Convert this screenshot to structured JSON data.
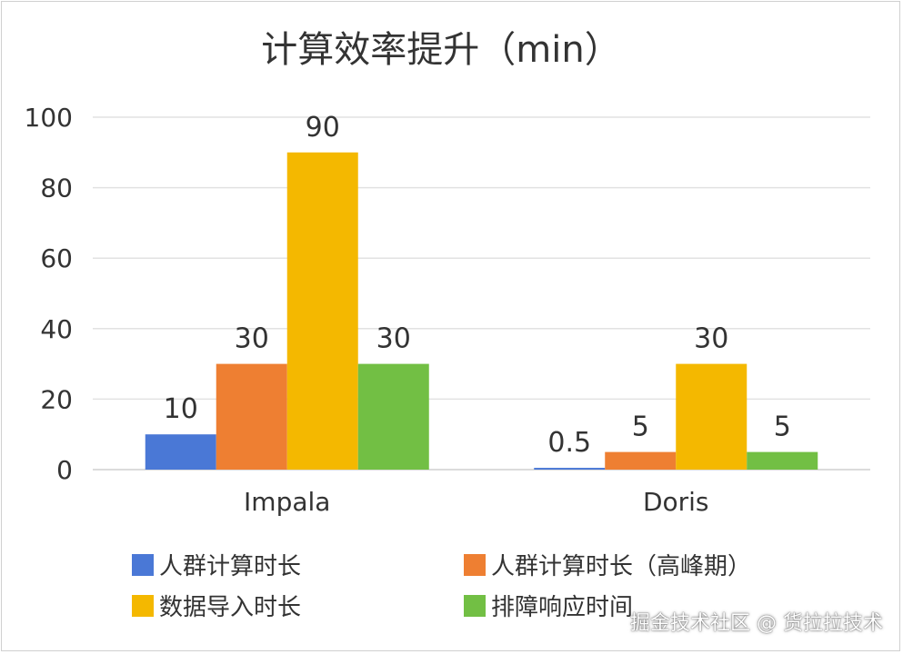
{
  "chart_data": {
    "type": "bar",
    "title": "计算效率提升（min）",
    "categories": [
      "Impala",
      "Doris"
    ],
    "series": [
      {
        "name": "人群计算时长",
        "values": [
          10,
          0.5
        ],
        "labels": [
          "10",
          "0.5"
        ],
        "color": "#4a78d6"
      },
      {
        "name": "人群计算时长（高峰期）",
        "values": [
          30,
          5
        ],
        "labels": [
          "30",
          "5"
        ],
        "color": "#ee7f32"
      },
      {
        "name": "数据导入时长",
        "values": [
          90,
          30
        ],
        "labels": [
          "90",
          "30"
        ],
        "color": "#f4b800"
      },
      {
        "name": "排障响应时间",
        "values": [
          30,
          5
        ],
        "labels": [
          "30",
          "5"
        ],
        "color": "#72bf44"
      }
    ],
    "ylim": [
      0,
      100
    ],
    "yticks": [
      0,
      20,
      40,
      60,
      80,
      100
    ],
    "grid": true,
    "legend": "bottom"
  },
  "watermark": "掘金技术社区 @ 货拉拉技术"
}
